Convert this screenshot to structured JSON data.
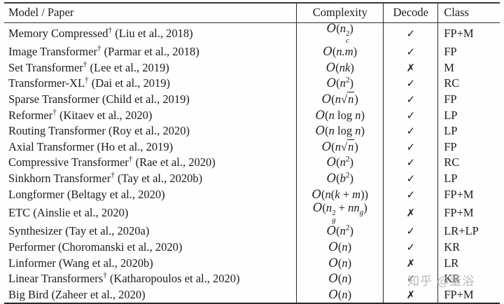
{
  "table": {
    "headers": [
      "Model / Paper",
      "Complexity",
      "Decode",
      "Class"
    ],
    "rows": [
      {
        "model": "Memory Compressed",
        "dagger": true,
        "cite": "(Liu et al., 2018)",
        "complexity_html": "<span class='cal'>O</span>(<i>n</i><span class='ss'><span class='s-sup'>2</span><span class='s-sub'>c</span></span>)",
        "decode": "✓",
        "class": "FP+M"
      },
      {
        "model": "Image Transformer",
        "dagger": true,
        "cite": "(Parmar et al., 2018)",
        "complexity_html": "<span class='cal'>O</span>(<i>n.m</i>)",
        "decode": "✓",
        "class": "FP"
      },
      {
        "model": "Set Transformer",
        "dagger": true,
        "cite": "(Lee et al., 2019)",
        "complexity_html": "<span class='cal'>O</span>(<i>nk</i>)",
        "decode": "✗",
        "class": "M"
      },
      {
        "model": "Transformer-XL",
        "dagger": true,
        "cite": "(Dai et al., 2019)",
        "complexity_html": "<span class='cal'>O</span>(<i>n</i><sup>2</sup>)",
        "decode": "✓",
        "class": "RC"
      },
      {
        "model": "Sparse Transformer",
        "dagger": false,
        "cite": "(Child et al., 2019)",
        "complexity_html": "<span class='cal'>O</span>(<i>n</i><span class='sqrt'>√<span class='rad'><i>n</i></span></span>)",
        "decode": "✓",
        "class": "FP"
      },
      {
        "model": "Reformer",
        "dagger": true,
        "cite": "(Kitaev et al., 2020)",
        "complexity_html": "<span class='cal'>O</span>(<i>n</i> log <i>n</i>)",
        "decode": "✓",
        "class": "LP"
      },
      {
        "model": "Routing Transformer",
        "dagger": false,
        "cite": "(Roy et al., 2020)",
        "complexity_html": "<span class='cal'>O</span>(<i>n</i> log <i>n</i>)",
        "decode": "✓",
        "class": "LP"
      },
      {
        "model": "Axial Transformer",
        "dagger": false,
        "cite": "(Ho et al., 2019)",
        "complexity_html": "<span class='cal'>O</span>(<i>n</i><span class='sqrt'>√<span class='rad'><i>n</i></span></span>)",
        "decode": "✓",
        "class": "FP"
      },
      {
        "model": "Compressive Transformer",
        "dagger": true,
        "cite": "(Rae et al., 2020)",
        "complexity_html": "<span class='cal'>O</span>(<i>n</i><sup>2</sup>)",
        "decode": "✓",
        "class": "RC"
      },
      {
        "model": "Sinkhorn Transformer",
        "dagger": true,
        "cite": "(Tay et al., 2020b)",
        "complexity_html": "<span class='cal'>O</span>(<i>b</i><sup>2</sup>)",
        "decode": "✓",
        "class": "LP"
      },
      {
        "model": "Longformer",
        "dagger": false,
        "cite": "(Beltagy et al., 2020)",
        "complexity_html": "<span class='cal'>O</span>(<i>n</i>(<i>k</i> + <i>m</i>))",
        "decode": "✓",
        "class": "FP+M"
      },
      {
        "model": "ETC",
        "dagger": false,
        "cite": "(Ainslie et al., 2020)",
        "complexity_html": "<span class='cal'>O</span>(<i>n</i><span class='ss'><span class='s-sup'>2</span><span class='s-sub'>g</span></span> + <i>nn</i><sub>g</sub>)",
        "decode": "✗",
        "class": "FP+M"
      },
      {
        "model": "Synthesizer",
        "dagger": false,
        "cite": "(Tay et al., 2020a)",
        "complexity_html": "<span class='cal'>O</span>(<i>n</i><sup>2</sup>)",
        "decode": "✓",
        "class": "LR+LP"
      },
      {
        "model": "Performer",
        "dagger": false,
        "cite": "(Choromanski et al., 2020)",
        "complexity_html": "<span class='cal'>O</span>(<i>n</i>)",
        "decode": "✓",
        "class": "KR"
      },
      {
        "model": "Linformer",
        "dagger": false,
        "cite": "(Wang et al., 2020b)",
        "complexity_html": "<span class='cal'>O</span>(<i>n</i>)",
        "decode": "✗",
        "class": "LR"
      },
      {
        "model": "Linear Transformers",
        "dagger": true,
        "cite": "(Katharopoulos et al., 2020)",
        "complexity_html": "<span class='cal'>O</span>(<i>n</i>)",
        "decode": "✓",
        "class": "KR"
      },
      {
        "model": "Big Bird",
        "dagger": false,
        "cite": "(Zaheer et al., 2020)",
        "complexity_html": "<span class='cal'>O</span>(<i>n</i>)",
        "decode": "✗",
        "class": "FP+M"
      }
    ],
    "dagger_symbol": "†",
    "check_symbol": "✓",
    "cross_symbol": "✗"
  },
  "watermark": {
    "text": "知乎 @董浴"
  },
  "colors": {
    "background": "#fefefe",
    "text": "#1c1c1c",
    "rule": "#2a2a2a",
    "watermark": "#7d7d7d"
  }
}
